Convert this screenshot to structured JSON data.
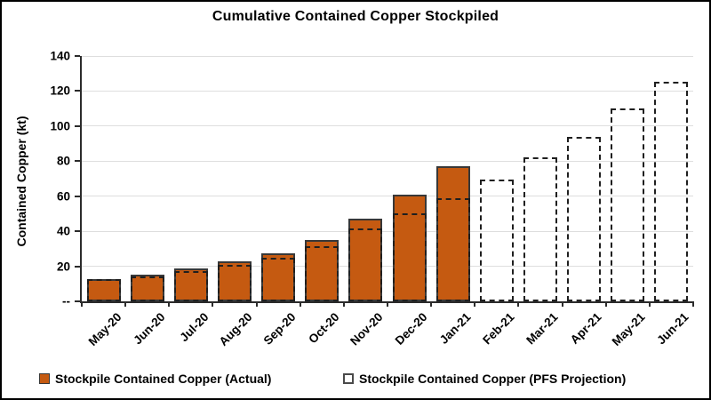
{
  "colors": {
    "actual_fill": "#C55A11",
    "actual_border": "#383838",
    "projection_border": "#1f1f1f",
    "gridline": "#dedede",
    "axis": "#2b2b2b"
  },
  "legend": {
    "actual_label": "Stockpile Contained Copper (Actual)",
    "projection_label": "Stockpile Contained Copper (PFS Projection)"
  },
  "chart_data": {
    "type": "bar",
    "title": "Cumulative Contained Copper Stockpiled",
    "xlabel": "",
    "ylabel": "Contained Copper (kt)",
    "ylim": [
      0,
      140
    ],
    "ytick_interval": 20,
    "ytick_labels": [
      "--",
      "20",
      "40",
      "60",
      "80",
      "100",
      "120",
      "140"
    ],
    "grid": "horizontal",
    "legend_position": "bottom",
    "categories": [
      "May-20",
      "Jun-20",
      "Jul-20",
      "Aug-20",
      "Sep-20",
      "Oct-20",
      "Nov-20",
      "Dec-20",
      "Jan-21",
      "Feb-21",
      "Mar-21",
      "Apr-21",
      "May-21",
      "Jun-21"
    ],
    "series": [
      {
        "name": "Stockpile Contained Copper (Actual)",
        "style": "filled",
        "values": [
          12.5,
          15,
          19,
          23,
          27.5,
          35,
          47,
          61,
          77,
          null,
          null,
          null,
          null,
          null
        ]
      },
      {
        "name": "Stockpile Contained Copper (PFS Projection)",
        "style": "dashed-outline",
        "values": [
          12.5,
          14,
          17.5,
          21,
          25,
          31.5,
          41.5,
          50,
          59,
          69.5,
          82,
          94,
          110,
          125.5
        ]
      }
    ]
  }
}
